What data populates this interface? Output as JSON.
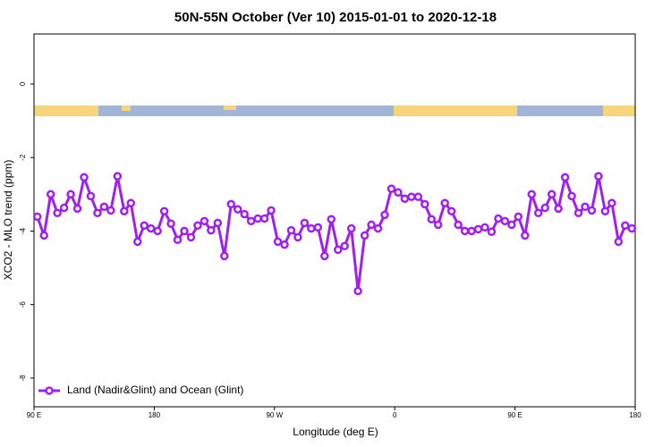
{
  "chart_data": {
    "type": "line",
    "title": "50N-55N October (Ver 10)   2015-01-01 to 2020-12-18",
    "x_label": "Longitude (deg E)",
    "y_label": "XCO2 - MLO trend (ppm)",
    "x": [
      92.5,
      97.5,
      102.5,
      107.5,
      112.5,
      117.5,
      122.5,
      127.5,
      132.5,
      137.5,
      142.5,
      147.5,
      152.5,
      157.5,
      162.5,
      167.5,
      172.5,
      177.5,
      182.5,
      187.5,
      192.5,
      197.5,
      202.5,
      207.5,
      212.5,
      217.5,
      222.5,
      227.5,
      232.5,
      237.5,
      242.5,
      247.5,
      252.5,
      257.5,
      262.5,
      267.5,
      272.5,
      277.5,
      282.5,
      287.5,
      292.5,
      297.5,
      302.5,
      307.5,
      312.5,
      317.5,
      322.5,
      327.5,
      332.5,
      337.5,
      342.5,
      347.5,
      352.5,
      357.5,
      362.5,
      367.5,
      372.5,
      377.5,
      382.5,
      387.5,
      392.5,
      397.5,
      402.5,
      407.5,
      412.5,
      417.5,
      422.5,
      427.5,
      432.5,
      437.5,
      442.5,
      447.5,
      452.5,
      457.5,
      462.5,
      467.5,
      472.5,
      477.5,
      482.5,
      487.5,
      492.5,
      497.5,
      502.5,
      507.5,
      512.5,
      517.5,
      522.5,
      527.5,
      532.5,
      537.5
    ],
    "series": [
      {
        "name": "Land (Nadir&Glint) and Ocean (Glint)",
        "color": "#a020f0",
        "values": [
          -3.61,
          -4.12,
          -3.0,
          -3.51,
          -3.37,
          -3.0,
          -3.39,
          -2.54,
          -3.05,
          -3.51,
          -3.34,
          -3.44,
          -2.51,
          -3.46,
          -3.24,
          -4.29,
          -3.85,
          -3.93,
          -4.0,
          -3.46,
          -3.8,
          -4.24,
          -4.0,
          -4.17,
          -3.85,
          -3.73,
          -3.98,
          -3.78,
          -4.68,
          -3.27,
          -3.41,
          -3.54,
          -3.73,
          -3.66,
          -3.66,
          -3.44,
          -4.29,
          -4.37,
          -3.98,
          -4.17,
          -3.78,
          -3.93,
          -3.9,
          -4.68,
          -3.68,
          -4.51,
          -4.41,
          -3.93,
          -5.63,
          -4.12,
          -3.83,
          -3.93,
          -3.56,
          -2.85,
          -2.95,
          -3.12,
          -3.07,
          -3.07,
          -3.27,
          -3.68,
          -3.83,
          -3.24,
          -3.46,
          -3.83,
          -4.0,
          -4.0,
          -3.95,
          -3.9,
          -4.02,
          -3.66,
          -3.73,
          -3.83,
          -3.61,
          -4.12,
          -3.0,
          -3.51,
          -3.37,
          -3.0,
          -3.39,
          -2.54,
          -3.05,
          -3.51,
          -3.34,
          -3.44,
          -2.51,
          -3.46,
          -3.24,
          -4.29,
          -3.85,
          -3.93
        ]
      }
    ],
    "xlim": [
      90,
      540
    ],
    "xticks": [
      {
        "value": 90,
        "label": "90 E"
      },
      {
        "value": 180,
        "label": "180"
      },
      {
        "value": 270,
        "label": "90 W"
      },
      {
        "value": 360,
        "label": "0"
      },
      {
        "value": 450,
        "label": "90 E"
      },
      {
        "value": 540,
        "label": "180"
      }
    ],
    "ylim": [
      -8.78,
      1.36
    ],
    "yticks": [
      0,
      -2,
      -4,
      -6,
      -8
    ],
    "legend": "bottom-left"
  }
}
